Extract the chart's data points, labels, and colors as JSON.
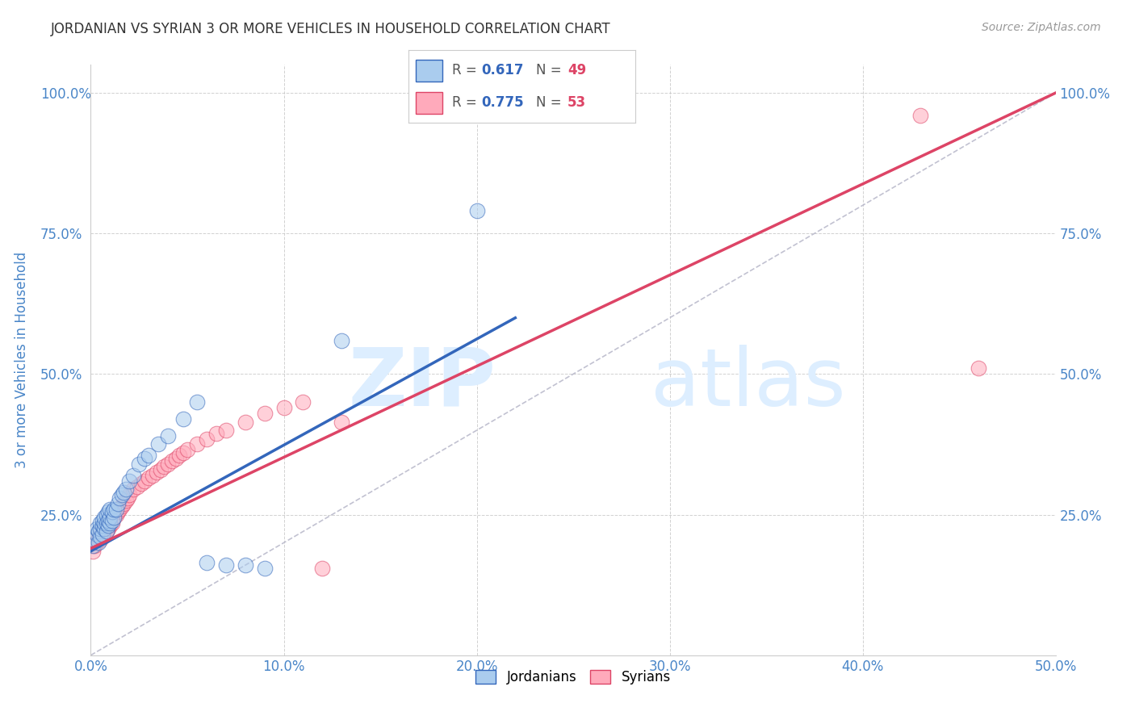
{
  "title": "JORDANIAN VS SYRIAN 3 OR MORE VEHICLES IN HOUSEHOLD CORRELATION CHART",
  "source": "Source: ZipAtlas.com",
  "ylabel": "3 or more Vehicles in Household",
  "xlabel": "",
  "xlim": [
    0.0,
    0.5
  ],
  "ylim": [
    0.0,
    1.05
  ],
  "xtick_labels": [
    "0.0%",
    "10.0%",
    "20.0%",
    "30.0%",
    "40.0%",
    "50.0%"
  ],
  "xtick_values": [
    0.0,
    0.1,
    0.2,
    0.3,
    0.4,
    0.5
  ],
  "ytick_labels": [
    "25.0%",
    "50.0%",
    "75.0%",
    "100.0%"
  ],
  "ytick_values": [
    0.25,
    0.5,
    0.75,
    1.0
  ],
  "jordanian_color": "#aaccee",
  "syrian_color": "#ffaabb",
  "jordanian_line_color": "#3366bb",
  "syrian_line_color": "#dd4466",
  "diagonal_color": "#bbbbcc",
  "background_color": "#ffffff",
  "grid_color": "#cccccc",
  "watermark_color": "#ddeeff",
  "title_color": "#333333",
  "axis_label_color": "#4a86c8",
  "legend_R1": "0.617",
  "legend_N1": "49",
  "legend_R2": "0.775",
  "legend_N2": "53",
  "legend_color_R": "#3366bb",
  "legend_color_N": "#dd4466",
  "jordanian_x": [
    0.001,
    0.002,
    0.003,
    0.003,
    0.004,
    0.004,
    0.005,
    0.005,
    0.005,
    0.006,
    0.006,
    0.006,
    0.007,
    0.007,
    0.007,
    0.008,
    0.008,
    0.008,
    0.009,
    0.009,
    0.009,
    0.01,
    0.01,
    0.01,
    0.011,
    0.011,
    0.012,
    0.012,
    0.013,
    0.014,
    0.015,
    0.016,
    0.017,
    0.018,
    0.02,
    0.022,
    0.025,
    0.028,
    0.03,
    0.035,
    0.04,
    0.048,
    0.055,
    0.06,
    0.07,
    0.08,
    0.09,
    0.13,
    0.2
  ],
  "jordanian_y": [
    0.195,
    0.205,
    0.215,
    0.225,
    0.2,
    0.22,
    0.21,
    0.225,
    0.235,
    0.215,
    0.23,
    0.24,
    0.225,
    0.235,
    0.245,
    0.22,
    0.235,
    0.25,
    0.23,
    0.24,
    0.255,
    0.235,
    0.245,
    0.26,
    0.24,
    0.255,
    0.245,
    0.26,
    0.26,
    0.27,
    0.28,
    0.285,
    0.29,
    0.295,
    0.31,
    0.32,
    0.34,
    0.35,
    0.355,
    0.375,
    0.39,
    0.42,
    0.45,
    0.165,
    0.16,
    0.16,
    0.155,
    0.56,
    0.79
  ],
  "syrian_x": [
    0.001,
    0.002,
    0.003,
    0.004,
    0.005,
    0.005,
    0.006,
    0.006,
    0.007,
    0.007,
    0.008,
    0.008,
    0.009,
    0.009,
    0.01,
    0.01,
    0.011,
    0.012,
    0.013,
    0.014,
    0.015,
    0.016,
    0.017,
    0.018,
    0.019,
    0.02,
    0.022,
    0.024,
    0.026,
    0.028,
    0.03,
    0.032,
    0.034,
    0.036,
    0.038,
    0.04,
    0.042,
    0.044,
    0.046,
    0.048,
    0.05,
    0.055,
    0.06,
    0.065,
    0.07,
    0.08,
    0.09,
    0.1,
    0.11,
    0.12,
    0.13,
    0.43,
    0.46
  ],
  "syrian_y": [
    0.185,
    0.195,
    0.2,
    0.21,
    0.205,
    0.215,
    0.21,
    0.22,
    0.215,
    0.225,
    0.22,
    0.23,
    0.225,
    0.235,
    0.23,
    0.24,
    0.235,
    0.245,
    0.25,
    0.255,
    0.26,
    0.265,
    0.27,
    0.275,
    0.28,
    0.285,
    0.295,
    0.3,
    0.305,
    0.31,
    0.315,
    0.32,
    0.325,
    0.33,
    0.335,
    0.34,
    0.345,
    0.35,
    0.355,
    0.36,
    0.365,
    0.375,
    0.385,
    0.395,
    0.4,
    0.415,
    0.43,
    0.44,
    0.45,
    0.155,
    0.415,
    0.96,
    0.51
  ],
  "jord_line_x0": 0.0,
  "jord_line_y0": 0.185,
  "jord_line_x1": 0.22,
  "jord_line_y1": 0.6,
  "syr_line_x0": 0.0,
  "syr_line_y0": 0.19,
  "syr_line_x1": 0.5,
  "syr_line_y1": 1.0
}
